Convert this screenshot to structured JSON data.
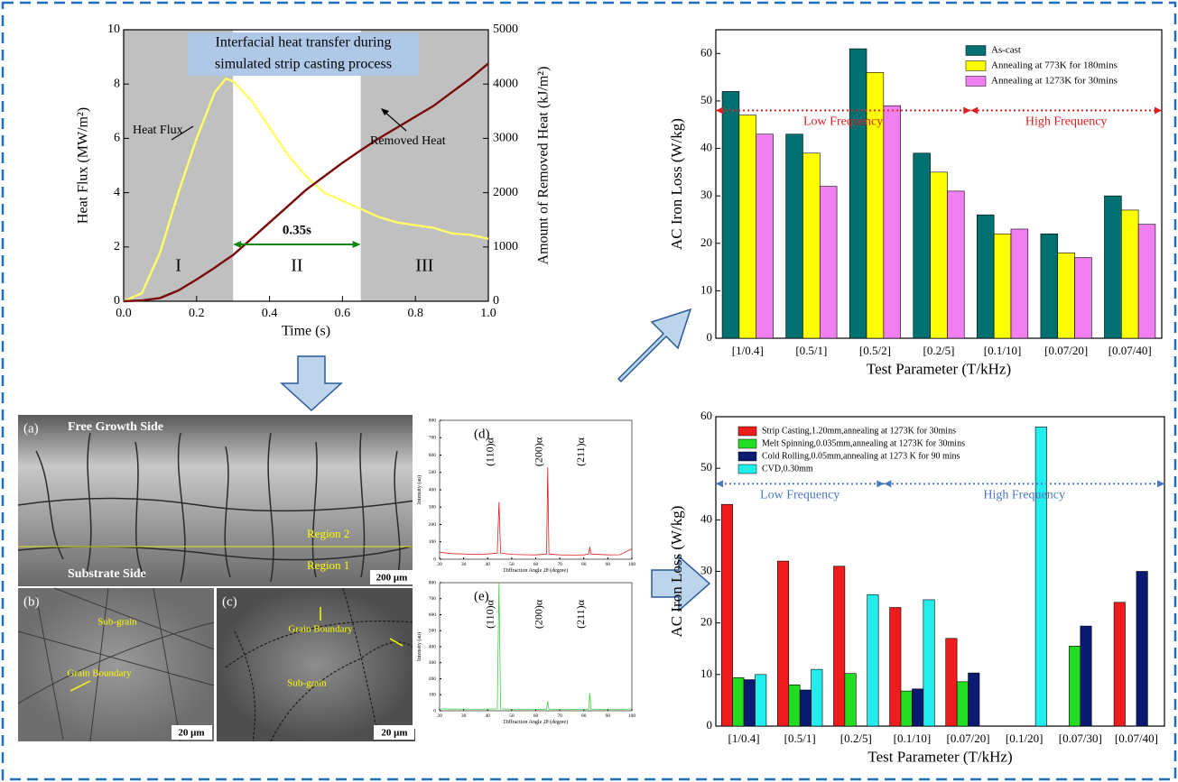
{
  "chart_data": [
    {
      "type": "line",
      "title_lines": [
        "Interfacial heat transfer during",
        "simulated strip casting process"
      ],
      "xlabel": "Time (s)",
      "ylabel": "Heat Flux (MW/m²)",
      "y2label": "Amount of Removed Heat (kJ/m²)",
      "x": [
        0,
        0.05,
        0.1,
        0.15,
        0.2,
        0.25,
        0.28,
        0.3,
        0.35,
        0.4,
        0.45,
        0.5,
        0.55,
        0.6,
        0.65,
        0.7,
        0.75,
        0.8,
        0.85,
        0.9,
        0.95,
        1.0
      ],
      "series": [
        {
          "name": "Heat Flux",
          "color": "#ffff66",
          "values": [
            0,
            0.3,
            1.8,
            4.0,
            6.0,
            7.7,
            8.2,
            8.1,
            7.4,
            6.4,
            5.4,
            4.6,
            4.0,
            3.7,
            3.4,
            3.1,
            2.9,
            2.8,
            2.7,
            2.5,
            2.45,
            2.3
          ]
        },
        {
          "name": "Removed Heat",
          "color": "#7a0a0a",
          "axis": "y2",
          "values": [
            0,
            15,
            60,
            200,
            400,
            620,
            760,
            850,
            1150,
            1450,
            1750,
            2050,
            2300,
            2550,
            2780,
            3000,
            3200,
            3400,
            3600,
            3850,
            4100,
            4380
          ]
        }
      ],
      "shaded_regions": [
        [
          0,
          0.3
        ],
        [
          0.65,
          1.0
        ]
      ],
      "region_labels": [
        "I",
        "II",
        "III"
      ],
      "span_label": "0.35s",
      "xlim": [
        0,
        1
      ],
      "xticks": [
        {
          "value": 0,
          "label": "0.0"
        },
        0.2,
        0.4,
        0.6,
        0.8,
        {
          "value": 1,
          "label": "1.0"
        }
      ],
      "ylim": [
        0,
        10
      ],
      "yticks": [
        0,
        2,
        4,
        6,
        8,
        10
      ],
      "y2lim": [
        0,
        5000
      ],
      "y2ticks": [
        0,
        1000,
        2000,
        3000,
        4000,
        5000
      ]
    },
    {
      "type": "bar",
      "xlabel": "Test Parameter (T/kHz)",
      "ylabel": "AC Iron Loss (W/kg)",
      "categories": [
        "[1/0.4]",
        "[0.5/1]",
        "[0.5/2]",
        "[0.2/5]",
        "[0.1/10]",
        "[0.07/20]",
        "[0.07/40]"
      ],
      "series": [
        {
          "name": "As-cast",
          "color": "#007070",
          "values": [
            52,
            43,
            61,
            39,
            26,
            22,
            30
          ]
        },
        {
          "name": "Annealing at 773K for 180mins",
          "color": "#ffff00",
          "values": [
            47,
            39,
            56,
            35,
            22,
            18,
            27
          ]
        },
        {
          "name": "Annealing at 1273K for 30mins",
          "color": "#f080f0",
          "values": [
            43,
            32,
            49,
            31,
            23,
            17,
            24
          ]
        }
      ],
      "frequency_labels": [
        "Low Frequency",
        "High Frequency"
      ],
      "divider_level": 48,
      "divider_color": "#e02020",
      "ylim": [
        0,
        65
      ],
      "yticks": [
        0,
        10,
        20,
        30,
        40,
        50,
        60
      ]
    },
    {
      "type": "bar",
      "xlabel": "Test Parameter (T/kHz)",
      "ylabel": "AC Iron Loss (W/kg)",
      "categories": [
        "[1/0.4]",
        "[0.5/1]",
        "[0.2/5]",
        "[0.1/10]",
        "[0.07/20]",
        "[0.1/20]",
        "[0.07/30]",
        "[0.07/40]"
      ],
      "series": [
        {
          "name": "Strip Casting,1.20mm,annealing at 1273K for 30mins",
          "color": "#ee1c1c",
          "values": [
            43,
            32,
            31,
            23,
            17,
            null,
            null,
            24
          ]
        },
        {
          "name": "Melt Spinning,0.035mm,annealing at 1273K for 30mins",
          "color": "#22dd22",
          "values": [
            9.4,
            8,
            10.2,
            6.8,
            8.6,
            null,
            15.5,
            null
          ]
        },
        {
          "name": "Cold Rolling,0.05mm,annealing at 1273 K for 90 mins",
          "color": "#0a1a70",
          "values": [
            9,
            7,
            null,
            7.2,
            10.3,
            null,
            19.4,
            30
          ]
        },
        {
          "name": "CVD,0.30mm",
          "color": "#22eeee",
          "values": [
            10,
            11,
            25.5,
            24.5,
            null,
            58,
            null,
            null
          ]
        }
      ],
      "frequency_labels": [
        "Low Frequency",
        "High Frequency"
      ],
      "divider_level": 47,
      "divider_color": "#4a78c0",
      "ylim": [
        0,
        60
      ],
      "yticks": [
        0,
        10,
        20,
        30,
        40,
        50,
        60
      ]
    },
    {
      "type": "line",
      "panel_label": "(d)",
      "xlabel": "Diffraction Angle 2θ (degree)",
      "ylabel": "Intensity (au)",
      "peak_labels": [
        "(110)α",
        "(200)α",
        "(211)α"
      ],
      "x": [
        20,
        25,
        30,
        35,
        40,
        44,
        44.7,
        45.4,
        50,
        55,
        60,
        64.5,
        65,
        65.5,
        70,
        75,
        80,
        82,
        82.5,
        83,
        90,
        95,
        100
      ],
      "series": [
        {
          "color": "#e02020",
          "values": [
            40,
            32,
            30,
            28,
            30,
            35,
            330,
            35,
            28,
            26,
            25,
            30,
            530,
            30,
            25,
            24,
            25,
            30,
            70,
            30,
            25,
            26,
            60
          ]
        }
      ],
      "xlim": [
        20,
        100
      ],
      "xticks": [
        20,
        30,
        40,
        50,
        60,
        70,
        80,
        90,
        100
      ],
      "ylim": [
        0,
        800
      ],
      "yticks": [
        0,
        100,
        200,
        300,
        400,
        500,
        600,
        700,
        800
      ]
    },
    {
      "type": "line",
      "panel_label": "(e)",
      "xlabel": "Diffraction Angle 2θ (degree)",
      "ylabel": "Intensity (au)",
      "peak_labels": [
        "(110)α",
        "(200)α",
        "(211)α"
      ],
      "x": [
        20,
        25,
        30,
        35,
        40,
        44,
        44.7,
        45.4,
        50,
        55,
        60,
        64.5,
        65,
        65.5,
        70,
        75,
        80,
        82,
        82.5,
        83,
        90,
        95,
        100
      ],
      "series": [
        {
          "color": "#40d040",
          "values": [
            12,
            10,
            10,
            9,
            10,
            12,
            800,
            12,
            9,
            8,
            8,
            10,
            60,
            10,
            8,
            8,
            9,
            10,
            110,
            10,
            8,
            8,
            12
          ]
        }
      ],
      "xlim": [
        20,
        100
      ],
      "xticks": [
        20,
        30,
        40,
        50,
        60,
        70,
        80,
        90,
        100
      ],
      "ylim": [
        0,
        800
      ],
      "yticks": [
        0,
        100,
        200,
        300,
        400,
        500,
        600,
        700,
        800
      ]
    }
  ],
  "micrographs": {
    "a": {
      "label": "(a)",
      "top": "Free Growth Side",
      "bottom": "Substrate Side",
      "region2": "Region 2",
      "region1": "Region 1",
      "scale": "200 μm"
    },
    "b": {
      "label": "(b)",
      "sub_grain": "Sub-grain",
      "boundary": "Grain Boundary",
      "scale": "20 μm"
    },
    "c": {
      "label": "(c)",
      "boundary": "Grain Boundary",
      "sub_grain": "Sub-grain",
      "scale": "20 μm"
    }
  }
}
